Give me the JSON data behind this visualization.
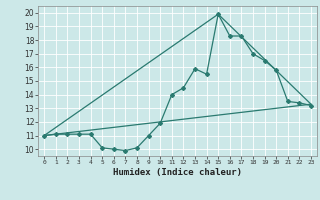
{
  "title": "",
  "xlabel": "Humidex (Indice chaleur)",
  "ylabel": "",
  "background_color": "#cce8e8",
  "grid_color": "#ffffff",
  "line_color": "#2a7a70",
  "xlim": [
    -0.5,
    23.5
  ],
  "ylim": [
    9.5,
    20.5
  ],
  "xticks": [
    0,
    1,
    2,
    3,
    4,
    5,
    6,
    7,
    8,
    9,
    10,
    11,
    12,
    13,
    14,
    15,
    16,
    17,
    18,
    19,
    20,
    21,
    22,
    23
  ],
  "yticks": [
    10,
    11,
    12,
    13,
    14,
    15,
    16,
    17,
    18,
    19,
    20
  ],
  "series_main": {
    "x": [
      0,
      1,
      2,
      3,
      4,
      5,
      6,
      7,
      8,
      9,
      10,
      11,
      12,
      13,
      14,
      15,
      16,
      17,
      18,
      19,
      20,
      21,
      22,
      23
    ],
    "y": [
      11.0,
      11.1,
      11.1,
      11.1,
      11.1,
      10.1,
      10.0,
      9.9,
      10.1,
      11.0,
      11.9,
      14.0,
      14.5,
      15.9,
      15.5,
      19.9,
      18.3,
      18.3,
      17.0,
      16.5,
      15.8,
      13.5,
      13.4,
      13.2
    ]
  },
  "series_linear": {
    "x": [
      0,
      23
    ],
    "y": [
      11.0,
      13.3
    ]
  },
  "series_triangle": {
    "x": [
      0,
      15,
      23
    ],
    "y": [
      11.0,
      19.9,
      13.3
    ]
  }
}
